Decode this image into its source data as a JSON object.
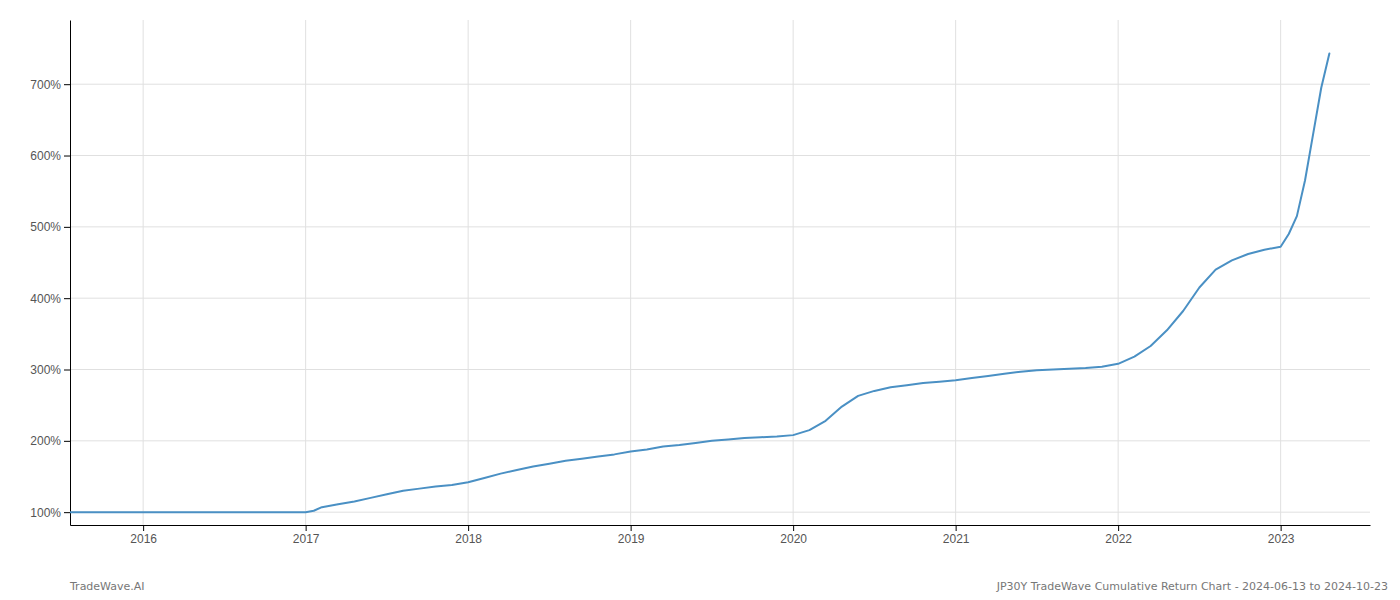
{
  "chart_data": {
    "type": "line",
    "annotations": [
      "TradeWave.AI",
      "JP30Y TradeWave Cumulative Return Chart - 2024-06-13 to 2024-10-23"
    ],
    "color": "#4a90c4",
    "grid": true,
    "xlim": [
      2015.55,
      2023.55
    ],
    "xticks": [
      2016,
      2017,
      2018,
      2019,
      2020,
      2021,
      2022,
      2023
    ],
    "ylim": [
      82,
      790
    ],
    "yticks": [
      {
        "value": 100,
        "label": "100%"
      },
      {
        "value": 200,
        "label": "200%"
      },
      {
        "value": 300,
        "label": "300%"
      },
      {
        "value": 400,
        "label": "400%"
      },
      {
        "value": 500,
        "label": "500%"
      },
      {
        "value": 600,
        "label": "600%"
      },
      {
        "value": 700,
        "label": "700%"
      }
    ],
    "x": [
      2015.55,
      2015.7,
      2015.9,
      2016.0,
      2016.1,
      2016.2,
      2016.3,
      2016.4,
      2016.5,
      2016.6,
      2016.7,
      2016.8,
      2016.9,
      2017.0,
      2017.05,
      2017.1,
      2017.2,
      2017.3,
      2017.4,
      2017.5,
      2017.6,
      2017.7,
      2017.8,
      2017.9,
      2018.0,
      2018.1,
      2018.2,
      2018.3,
      2018.4,
      2018.5,
      2018.6,
      2018.7,
      2018.8,
      2018.9,
      2019.0,
      2019.1,
      2019.2,
      2019.3,
      2019.4,
      2019.5,
      2019.6,
      2019.7,
      2019.8,
      2019.9,
      2020.0,
      2020.1,
      2020.2,
      2020.3,
      2020.4,
      2020.5,
      2020.6,
      2020.7,
      2020.8,
      2020.9,
      2021.0,
      2021.1,
      2021.2,
      2021.3,
      2021.4,
      2021.5,
      2021.6,
      2021.7,
      2021.8,
      2021.9,
      2022.0,
      2022.1,
      2022.2,
      2022.3,
      2022.4,
      2022.5,
      2022.6,
      2022.7,
      2022.8,
      2022.9,
      2023.0,
      2023.05,
      2023.1,
      2023.15,
      2023.2,
      2023.25,
      2023.3
    ],
    "values": [
      100,
      100,
      100,
      100,
      100,
      100,
      100,
      100,
      100,
      100,
      100,
      100,
      100,
      100,
      102,
      107,
      111,
      115,
      120,
      125,
      130,
      133,
      136,
      138,
      142,
      148,
      154,
      159,
      164,
      168,
      172,
      175,
      178,
      181,
      185,
      188,
      192,
      194,
      197,
      200,
      202,
      204,
      205,
      206,
      208,
      215,
      228,
      248,
      263,
      270,
      275,
      278,
      281,
      283,
      285,
      288,
      291,
      294,
      297,
      299,
      300,
      301,
      302,
      304,
      308,
      318,
      333,
      355,
      382,
      415,
      440,
      453,
      462,
      468,
      472,
      490,
      515,
      565,
      630,
      695,
      743
    ]
  }
}
